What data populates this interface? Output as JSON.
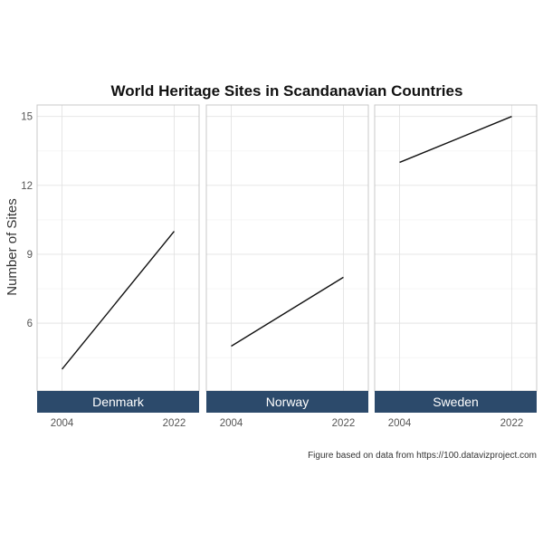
{
  "chart_data": {
    "type": "line",
    "title": "World Heritage Sites in Scandanavian Countries",
    "ylabel": "Number of Sites",
    "xlabel": "",
    "caption": "Figure based on data from https://100.datavizproject.com",
    "x": [
      2004,
      2022
    ],
    "x_ticks": [
      "2004",
      "2022"
    ],
    "y_ticks": [
      "6",
      "9",
      "12",
      "15"
    ],
    "ylim": [
      3.05,
      15.5
    ],
    "xlim": [
      2000,
      2026
    ],
    "grid": true,
    "facet_position": "bottom",
    "line_color": "#111111",
    "strip_color": "#2c4a6b",
    "panels": [
      {
        "name": "Denmark",
        "values": [
          4,
          10
        ]
      },
      {
        "name": "Norway",
        "values": [
          5,
          8
        ]
      },
      {
        "name": "Sweden",
        "values": [
          13,
          15
        ]
      }
    ]
  }
}
